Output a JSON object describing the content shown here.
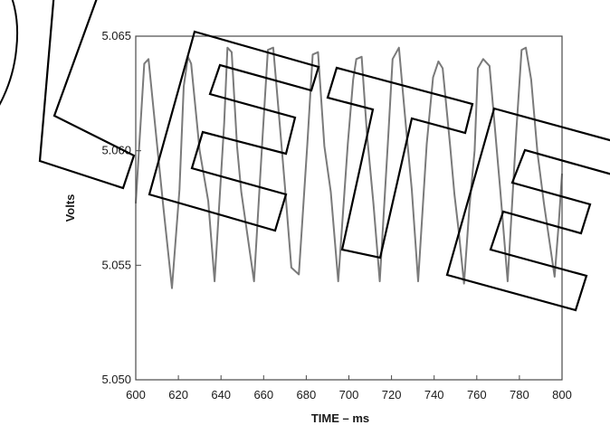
{
  "chart_data": {
    "type": "line",
    "xlabel": "TIME – ms",
    "ylabel": "Volts",
    "xlim": [
      600,
      800
    ],
    "ylim": [
      5.05,
      5.065
    ],
    "x_ticks": [
      600,
      620,
      640,
      660,
      680,
      700,
      720,
      740,
      760,
      780,
      800
    ],
    "x_tick_labels": [
      "600",
      "620",
      "640",
      "660",
      "680",
      "700",
      "720",
      "740",
      "760",
      "780",
      "800"
    ],
    "y_ticks": [
      5.05,
      5.055,
      5.06,
      5.065
    ],
    "y_tick_labels": [
      "5.050",
      "5.055",
      "5.060",
      "5.065"
    ],
    "grid": false,
    "series": [
      {
        "color": "#7a7a7a",
        "x": [
          600,
          601.5,
          604,
          606,
          610.5,
          613,
          617,
          620.5,
          622.5,
          624.5,
          626,
          630,
          634,
          637,
          641.5,
          643,
          645,
          647.5,
          649.5,
          655.5,
          659.5,
          662,
          664.5,
          667.5,
          670,
          673,
          676.5,
          680.5,
          683,
          685.5,
          688.5,
          691.5,
          695,
          699.5,
          702,
          703.5,
          706,
          708.5,
          711.5,
          714.5,
          718.5,
          720.5,
          723.5,
          727,
          729.5,
          732.5,
          736.5,
          739.5,
          742,
          744,
          747.5,
          749.5,
          751.5,
          754,
          756.5,
          759,
          760.5,
          763,
          766,
          771,
          774.5,
          778.5,
          781,
          783,
          785.5,
          788.5,
          791.5,
          796.5,
          798.5,
          800
        ],
        "y": [
          5.0577,
          5.06,
          5.0638,
          5.064,
          5.0598,
          5.0575,
          5.054,
          5.0583,
          5.0628,
          5.0641,
          5.0638,
          5.06,
          5.0578,
          5.0543,
          5.0612,
          5.0645,
          5.0643,
          5.0602,
          5.0582,
          5.0543,
          5.0606,
          5.0644,
          5.0645,
          5.0612,
          5.0584,
          5.0549,
          5.0546,
          5.0603,
          5.0642,
          5.0643,
          5.0602,
          5.0582,
          5.0543,
          5.0603,
          5.0631,
          5.064,
          5.0641,
          5.0607,
          5.0577,
          5.0543,
          5.0607,
          5.064,
          5.0645,
          5.0608,
          5.0583,
          5.0543,
          5.0603,
          5.0632,
          5.0639,
          5.0636,
          5.0602,
          5.0581,
          5.0565,
          5.0542,
          5.0575,
          5.06,
          5.0636,
          5.064,
          5.0637,
          5.0583,
          5.0543,
          5.0608,
          5.0644,
          5.0645,
          5.0631,
          5.0599,
          5.0577,
          5.0545,
          5.0569,
          5.059
        ]
      }
    ]
  },
  "stamp": {
    "text": "DELETE"
  }
}
